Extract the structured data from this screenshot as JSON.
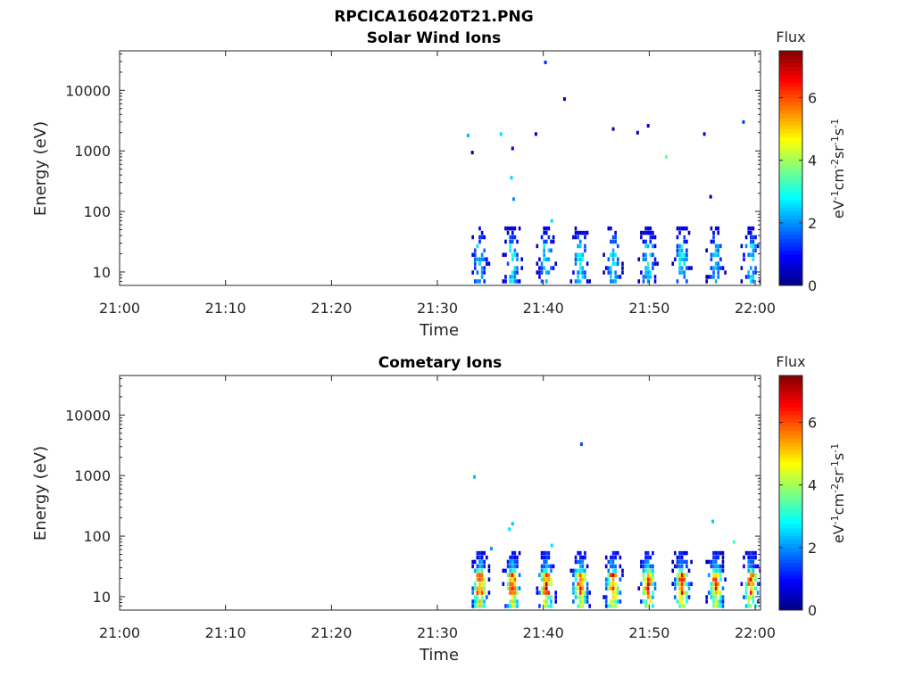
{
  "figure": {
    "title_line1": "RPCICA160420T21.PNG",
    "title_line2": "Solar Wind Ions"
  },
  "colormap": "jet",
  "chart_data": [
    {
      "type": "heatmap",
      "title": "Solar Wind Ions",
      "xlabel": "Time",
      "ylabel": "Energy (eV)",
      "x_ticks": [
        "21:00",
        "21:10",
        "21:20",
        "21:30",
        "21:40",
        "21:50",
        "22:00"
      ],
      "x_range_minutes": [
        0,
        60.5
      ],
      "y_scale": "log",
      "y_ticks": [
        10,
        100,
        1000,
        10000
      ],
      "y_tick_labels": [
        "10",
        "100",
        "1000",
        "10000"
      ],
      "ylim": [
        6,
        45000
      ],
      "colorbar": {
        "title": "Flux",
        "units": "eV-1cm-2sr-1s-1",
        "range": [
          0,
          7.5
        ],
        "ticks": [
          0,
          2,
          4,
          6
        ],
        "tick_labels": [
          "0",
          "2",
          "4",
          "6"
        ]
      },
      "pulse_times_minutes": [
        34.0,
        37.1,
        40.3,
        43.5,
        46.6,
        49.9,
        53.1,
        56.3,
        59.6
      ],
      "pulse_peak_flux": [
        2.6,
        3.0,
        2.9,
        3.0,
        2.8,
        2.9,
        2.8,
        2.6,
        2.8
      ],
      "isolated_points": [
        {
          "t": 32.9,
          "e": 1800,
          "flux": 2.3
        },
        {
          "t": 33.3,
          "e": 940,
          "flux": 0.3
        },
        {
          "t": 36.0,
          "e": 1900,
          "flux": 2.6
        },
        {
          "t": 37.1,
          "e": 1100,
          "flux": 0.9
        },
        {
          "t": 37.0,
          "e": 360,
          "flux": 2.5
        },
        {
          "t": 37.2,
          "e": 160,
          "flux": 2.0
        },
        {
          "t": 39.3,
          "e": 1900,
          "flux": 0.5
        },
        {
          "t": 40.2,
          "e": 29000,
          "flux": 1.2
        },
        {
          "t": 40.8,
          "e": 70,
          "flux": 2.6
        },
        {
          "t": 42.0,
          "e": 7200,
          "flux": 0.7
        },
        {
          "t": 46.6,
          "e": 2300,
          "flux": 0.4
        },
        {
          "t": 48.9,
          "e": 2000,
          "flux": 0.5
        },
        {
          "t": 49.9,
          "e": 2600,
          "flux": 0.6
        },
        {
          "t": 51.6,
          "e": 800,
          "flux": 3.6
        },
        {
          "t": 55.2,
          "e": 1900,
          "flux": 1.0
        },
        {
          "t": 55.8,
          "e": 175,
          "flux": 0.4
        },
        {
          "t": 58.9,
          "e": 3000,
          "flux": 1.4
        }
      ]
    },
    {
      "type": "heatmap",
      "title": "Cometary Ions",
      "xlabel": "Time",
      "ylabel": "Energy (eV)",
      "x_ticks": [
        "21:00",
        "21:10",
        "21:20",
        "21:30",
        "21:40",
        "21:50",
        "22:00"
      ],
      "x_range_minutes": [
        0,
        60.5
      ],
      "y_scale": "log",
      "y_ticks": [
        10,
        100,
        1000,
        10000
      ],
      "y_tick_labels": [
        "10",
        "100",
        "1000",
        "10000"
      ],
      "ylim": [
        6,
        45000
      ],
      "colorbar": {
        "title": "Flux",
        "units": "eV-1cm-2sr-1s-1",
        "range": [
          0,
          7.5
        ],
        "ticks": [
          0,
          2,
          4,
          6
        ],
        "tick_labels": [
          "0",
          "2",
          "4",
          "6"
        ]
      },
      "pulse_times_minutes": [
        34.0,
        37.1,
        40.3,
        43.5,
        46.6,
        49.9,
        53.1,
        56.3,
        59.6
      ],
      "pulse_peak_flux": [
        6.2,
        5.8,
        6.3,
        6.1,
        6.3,
        6.4,
        6.1,
        6.2,
        6.0
      ],
      "isolated_points": [
        {
          "t": 33.5,
          "e": 950,
          "flux": 2.3
        },
        {
          "t": 37.1,
          "e": 160,
          "flux": 2.4
        },
        {
          "t": 36.8,
          "e": 130,
          "flux": 2.6
        },
        {
          "t": 35.1,
          "e": 62,
          "flux": 2.0
        },
        {
          "t": 40.8,
          "e": 70,
          "flux": 2.6
        },
        {
          "t": 43.6,
          "e": 3300,
          "flux": 1.5
        },
        {
          "t": 56.0,
          "e": 175,
          "flux": 2.4
        },
        {
          "t": 58.0,
          "e": 80,
          "flux": 3.2
        }
      ]
    }
  ]
}
